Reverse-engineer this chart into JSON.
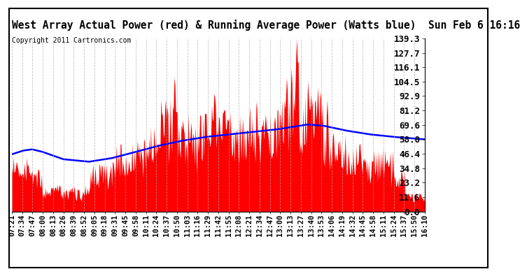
{
  "title": "West Array Actual Power (red) & Running Average Power (Watts blue)  Sun Feb 6 16:16",
  "copyright": "Copyright 2011 Cartronics.com",
  "y_ticks": [
    0.0,
    11.6,
    23.2,
    34.8,
    46.4,
    58.0,
    69.6,
    81.2,
    92.9,
    104.5,
    116.1,
    127.7,
    139.3
  ],
  "y_max": 139.3,
  "y_min": 0.0,
  "x_labels": [
    "07:21",
    "07:34",
    "07:47",
    "08:00",
    "08:13",
    "08:26",
    "08:39",
    "08:52",
    "09:05",
    "09:18",
    "09:31",
    "09:45",
    "09:58",
    "10:11",
    "10:24",
    "10:37",
    "10:50",
    "11:03",
    "11:16",
    "11:29",
    "11:42",
    "11:55",
    "12:08",
    "12:21",
    "12:34",
    "12:47",
    "13:00",
    "13:13",
    "13:27",
    "13:40",
    "13:53",
    "14:06",
    "14:19",
    "14:32",
    "14:45",
    "14:58",
    "15:11",
    "15:24",
    "15:37",
    "15:50",
    "16:10"
  ],
  "bg_color": "#ffffff",
  "plot_bg_color": "#ffffff",
  "bar_color": "#ff0000",
  "line_color": "#0000ff",
  "grid_color": "#aaaaaa",
  "title_fontsize": 10.5,
  "copyright_fontsize": 7,
  "tick_fontsize": 7.5
}
